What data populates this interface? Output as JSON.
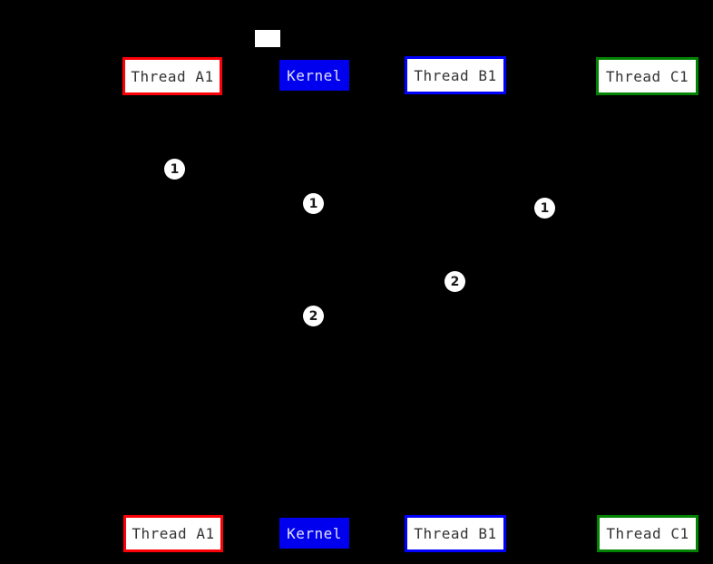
{
  "diagram": {
    "type": "sequence-diagram",
    "background_color": "#000000",
    "note": {
      "label": "",
      "fill_color": "#ffffff"
    },
    "actors": [
      {
        "label": "Thread A1",
        "border_color": "#fb0007",
        "fill_color": "#ffffff",
        "text_color": "#333333"
      },
      {
        "label": "Kernel",
        "border_color": "#0000ee",
        "fill_color": "#0000ee",
        "text_color": "#e0e0f8"
      },
      {
        "label": "Thread B1",
        "border_color": "#0000ff",
        "fill_color": "#ffffff",
        "text_color": "#333333"
      },
      {
        "label": "Thread C1",
        "border_color": "#018301",
        "fill_color": "#ffffff",
        "text_color": "#333333"
      }
    ],
    "markers": [
      {
        "label": "1"
      },
      {
        "label": "1"
      },
      {
        "label": "1"
      },
      {
        "label": "2"
      },
      {
        "label": "2"
      }
    ],
    "marker_style": {
      "fill_color": "#ffffff",
      "text_color": "#1a1a1a"
    }
  }
}
